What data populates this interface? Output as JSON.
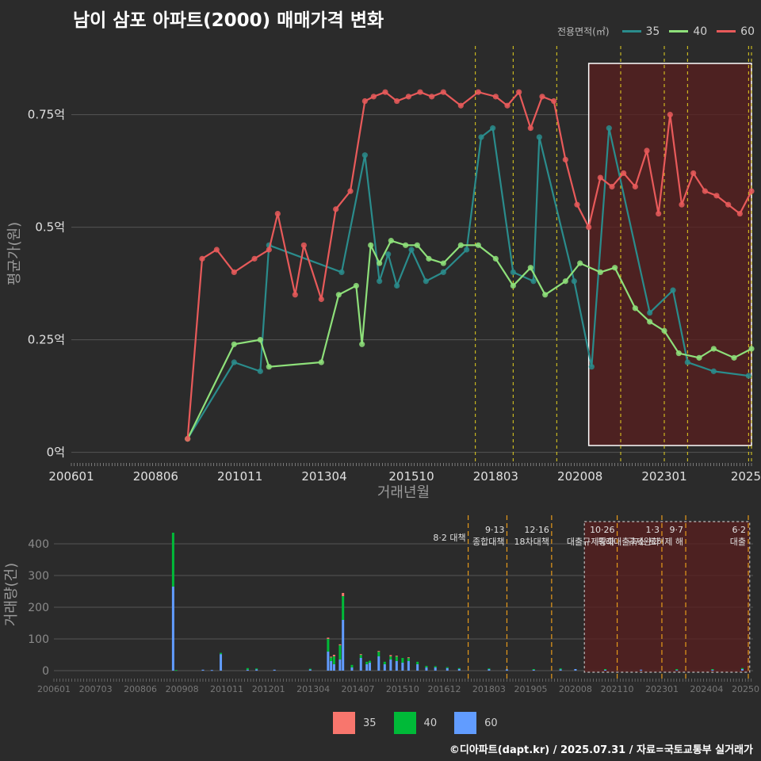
{
  "title": "남이 삼포 아파트(2000) 매매가격 변화",
  "legend": {
    "title": "전용면적(㎡)",
    "items": [
      {
        "label": "35",
        "line_color": "#2a8c8c",
        "bar_color": "#f8766d"
      },
      {
        "label": "40",
        "line_color": "#8ee07a",
        "bar_color": "#00ba38"
      },
      {
        "label": "60",
        "line_color": "#e85a5a",
        "bar_color": "#619cff"
      }
    ]
  },
  "footer": "©디아파트(dapt.kr) / 2025.07.31 / 자료=국토교통부 실거래가",
  "chart_data": [
    {
      "type": "line",
      "title": "남이 삼포 아파트(2000) 매매가격 변화",
      "xlabel": "거래년월",
      "ylabel": "평균가(원)",
      "x_tick_labels": [
        "200601",
        "200806",
        "201011",
        "201304",
        "201510",
        "201803",
        "202008",
        "202301",
        "2025"
      ],
      "y_tick_labels": [
        "0억",
        "0.25억",
        "0.5억",
        "0.75억"
      ],
      "y_ticks": [
        0,
        0.25,
        0.5,
        0.75
      ],
      "ylim": [
        -0.02,
        0.92
      ],
      "xlim": [
        "2006-01",
        "2025-07"
      ],
      "grid": true,
      "legend_position": "top-right",
      "highlight_range": [
        "2020-11",
        "2025-07"
      ],
      "policy_lines": [
        "2017-08",
        "2018-09",
        "2019-12",
        "2021-10",
        "2023-01",
        "2023-09",
        "2025-06",
        "2025-07"
      ],
      "series": [
        {
          "name": "35",
          "color": "#2a8c8c",
          "x": [
            "2009-05",
            "2010-09",
            "2011-06",
            "2011-09",
            "2013-10",
            "2014-06",
            "2014-11",
            "2015-02",
            "2015-05",
            "2015-10",
            "2016-03",
            "2016-09",
            "2017-05",
            "2017-10",
            "2018-02",
            "2018-09",
            "2019-04",
            "2019-06",
            "2020-06",
            "2020-12",
            "2021-06",
            "2022-08",
            "2023-04",
            "2023-09",
            "2024-06",
            "2025-06"
          ],
          "y": [
            0.03,
            0.2,
            0.18,
            0.46,
            0.4,
            0.66,
            0.38,
            0.44,
            0.37,
            0.45,
            0.38,
            0.4,
            0.45,
            0.7,
            0.72,
            0.4,
            0.38,
            0.7,
            0.38,
            0.19,
            0.72,
            0.31,
            0.36,
            0.2,
            0.18,
            0.17
          ]
        },
        {
          "name": "40",
          "color": "#8ee07a",
          "x": [
            "2009-05",
            "2010-09",
            "2011-06",
            "2011-09",
            "2013-03",
            "2013-09",
            "2014-03",
            "2014-05",
            "2014-08",
            "2014-11",
            "2015-03",
            "2015-08",
            "2015-12",
            "2016-04",
            "2016-09",
            "2017-03",
            "2017-09",
            "2018-03",
            "2018-09",
            "2019-03",
            "2019-08",
            "2020-03",
            "2020-08",
            "2021-03",
            "2021-08",
            "2022-03",
            "2022-08",
            "2023-01",
            "2023-06",
            "2024-01",
            "2024-06",
            "2025-01",
            "2025-07"
          ],
          "y": [
            0.03,
            0.24,
            0.25,
            0.19,
            0.2,
            0.35,
            0.37,
            0.24,
            0.46,
            0.42,
            0.47,
            0.46,
            0.46,
            0.43,
            0.42,
            0.46,
            0.46,
            0.43,
            0.37,
            0.41,
            0.35,
            0.38,
            0.42,
            0.4,
            0.41,
            0.32,
            0.29,
            0.27,
            0.22,
            0.21,
            0.23,
            0.21,
            0.23
          ]
        },
        {
          "name": "60",
          "color": "#e85a5a",
          "x": [
            "2009-05",
            "2009-10",
            "2010-03",
            "2010-09",
            "2011-04",
            "2011-09",
            "2011-12",
            "2012-06",
            "2012-09",
            "2013-03",
            "2013-08",
            "2014-01",
            "2014-06",
            "2014-09",
            "2015-01",
            "2015-05",
            "2015-09",
            "2016-01",
            "2016-05",
            "2016-09",
            "2017-03",
            "2017-09",
            "2018-03",
            "2018-07",
            "2018-11",
            "2019-03",
            "2019-07",
            "2019-11",
            "2020-03",
            "2020-07",
            "2020-11",
            "2021-03",
            "2021-07",
            "2021-11",
            "2022-03",
            "2022-07",
            "2022-11",
            "2023-03",
            "2023-07",
            "2023-11",
            "2024-03",
            "2024-07",
            "2024-11",
            "2025-03",
            "2025-07"
          ],
          "y": [
            0.03,
            0.43,
            0.45,
            0.4,
            0.43,
            0.45,
            0.53,
            0.35,
            0.46,
            0.34,
            0.54,
            0.58,
            0.78,
            0.79,
            0.8,
            0.78,
            0.79,
            0.8,
            0.79,
            0.8,
            0.77,
            0.8,
            0.79,
            0.77,
            0.8,
            0.72,
            0.79,
            0.78,
            0.65,
            0.55,
            0.5,
            0.61,
            0.59,
            0.62,
            0.59,
            0.67,
            0.53,
            0.75,
            0.55,
            0.62,
            0.58,
            0.57,
            0.55,
            0.53,
            0.58
          ]
        }
      ]
    },
    {
      "type": "bar",
      "ylabel": "거래량(건)",
      "x_tick_labels": [
        "200601",
        "200703",
        "200806",
        "200908",
        "201011",
        "201201",
        "201304",
        "201407",
        "201510",
        "201612",
        "201803",
        "201905",
        "202008",
        "202110",
        "202301",
        "202404",
        "20250"
      ],
      "y_tick_labels": [
        "0",
        "100",
        "200",
        "300",
        "400"
      ],
      "y_ticks": [
        0,
        100,
        200,
        300,
        400
      ],
      "ylim": [
        -5,
        470
      ],
      "grid": true,
      "highlight_range": [
        "2020-11",
        "2025-07"
      ],
      "annotations": [
        {
          "x": "2017-08",
          "lines": [
            "8·2 대책"
          ]
        },
        {
          "x": "2018-09",
          "lines": [
            "9·13",
            "종합대책"
          ]
        },
        {
          "x": "2019-12",
          "lines": [
            "12·16",
            "18차대책"
          ]
        },
        {
          "x": "2021-10",
          "lines": [
            "10·26",
            "대출규제강화"
          ]
        },
        {
          "x": "2023-01",
          "lines": [
            "1·3",
            "규제완화"
          ]
        },
        {
          "x": "2023-09",
          "lines": [
            "9·7",
            "특례대출축소 토허제 해"
          ]
        },
        {
          "x": "2025-06",
          "lines": [
            "6·2",
            "대출"
          ]
        }
      ],
      "bars": [
        {
          "x": "2009-05",
          "s35": 0,
          "s40": 170,
          "s60": 265
        },
        {
          "x": "2009-06",
          "s35": 0,
          "s40": 2,
          "s60": 0
        },
        {
          "x": "2010-03",
          "s35": 0,
          "s40": 0,
          "s60": 3
        },
        {
          "x": "2010-06",
          "s35": 0,
          "s40": 0,
          "s60": 2
        },
        {
          "x": "2010-09",
          "s35": 0,
          "s40": 4,
          "s60": 52
        },
        {
          "x": "2011-06",
          "s35": 0,
          "s40": 5,
          "s60": 3
        },
        {
          "x": "2011-09",
          "s35": 0,
          "s40": 3,
          "s60": 4
        },
        {
          "x": "2012-03",
          "s35": 0,
          "s40": 0,
          "s60": 3
        },
        {
          "x": "2013-03",
          "s35": 0,
          "s40": 2,
          "s60": 4
        },
        {
          "x": "2013-09",
          "s35": 4,
          "s40": 40,
          "s60": 60
        },
        {
          "x": "2013-10",
          "s35": 2,
          "s40": 12,
          "s60": 30
        },
        {
          "x": "2013-11",
          "s35": 5,
          "s40": 25,
          "s60": 20
        },
        {
          "x": "2014-01",
          "s35": 3,
          "s40": 45,
          "s60": 35
        },
        {
          "x": "2014-02",
          "s35": 10,
          "s40": 75,
          "s60": 160
        },
        {
          "x": "2014-05",
          "s35": 0,
          "s40": 8,
          "s60": 10
        },
        {
          "x": "2014-08",
          "s35": 2,
          "s40": 10,
          "s60": 40
        },
        {
          "x": "2014-10",
          "s35": 0,
          "s40": 8,
          "s60": 20
        },
        {
          "x": "2014-11",
          "s35": 0,
          "s40": 6,
          "s60": 25
        },
        {
          "x": "2015-02",
          "s35": 2,
          "s40": 15,
          "s60": 45
        },
        {
          "x": "2015-04",
          "s35": 0,
          "s40": 8,
          "s60": 20
        },
        {
          "x": "2015-06",
          "s35": 4,
          "s40": 10,
          "s60": 35
        },
        {
          "x": "2015-08",
          "s35": 2,
          "s40": 15,
          "s60": 30
        },
        {
          "x": "2015-10",
          "s35": 0,
          "s40": 15,
          "s60": 25
        },
        {
          "x": "2015-12",
          "s35": 2,
          "s40": 10,
          "s60": 30
        },
        {
          "x": "2016-03",
          "s35": 0,
          "s40": 8,
          "s60": 20
        },
        {
          "x": "2016-06",
          "s35": 0,
          "s40": 5,
          "s60": 10
        },
        {
          "x": "2016-09",
          "s35": 0,
          "s40": 4,
          "s60": 10
        },
        {
          "x": "2017-01",
          "s35": 0,
          "s40": 3,
          "s60": 8
        },
        {
          "x": "2017-05",
          "s35": 0,
          "s40": 2,
          "s60": 6
        },
        {
          "x": "2018-03",
          "s35": 0,
          "s40": 2,
          "s60": 5
        },
        {
          "x": "2018-09",
          "s35": 0,
          "s40": 0,
          "s60": 4
        },
        {
          "x": "2019-06",
          "s35": 0,
          "s40": 2,
          "s60": 3
        },
        {
          "x": "2020-03",
          "s35": 0,
          "s40": 3,
          "s60": 4
        },
        {
          "x": "2020-08",
          "s35": 0,
          "s40": 0,
          "s60": 5
        },
        {
          "x": "2021-06",
          "s35": 0,
          "s40": 2,
          "s60": 3
        },
        {
          "x": "2022-06",
          "s35": 0,
          "s40": 0,
          "s60": 3
        },
        {
          "x": "2023-06",
          "s35": 0,
          "s40": 3,
          "s60": 2
        },
        {
          "x": "2024-06",
          "s35": 0,
          "s40": 2,
          "s60": 3
        },
        {
          "x": "2025-04",
          "s35": 0,
          "s40": 3,
          "s60": 5
        }
      ]
    }
  ]
}
